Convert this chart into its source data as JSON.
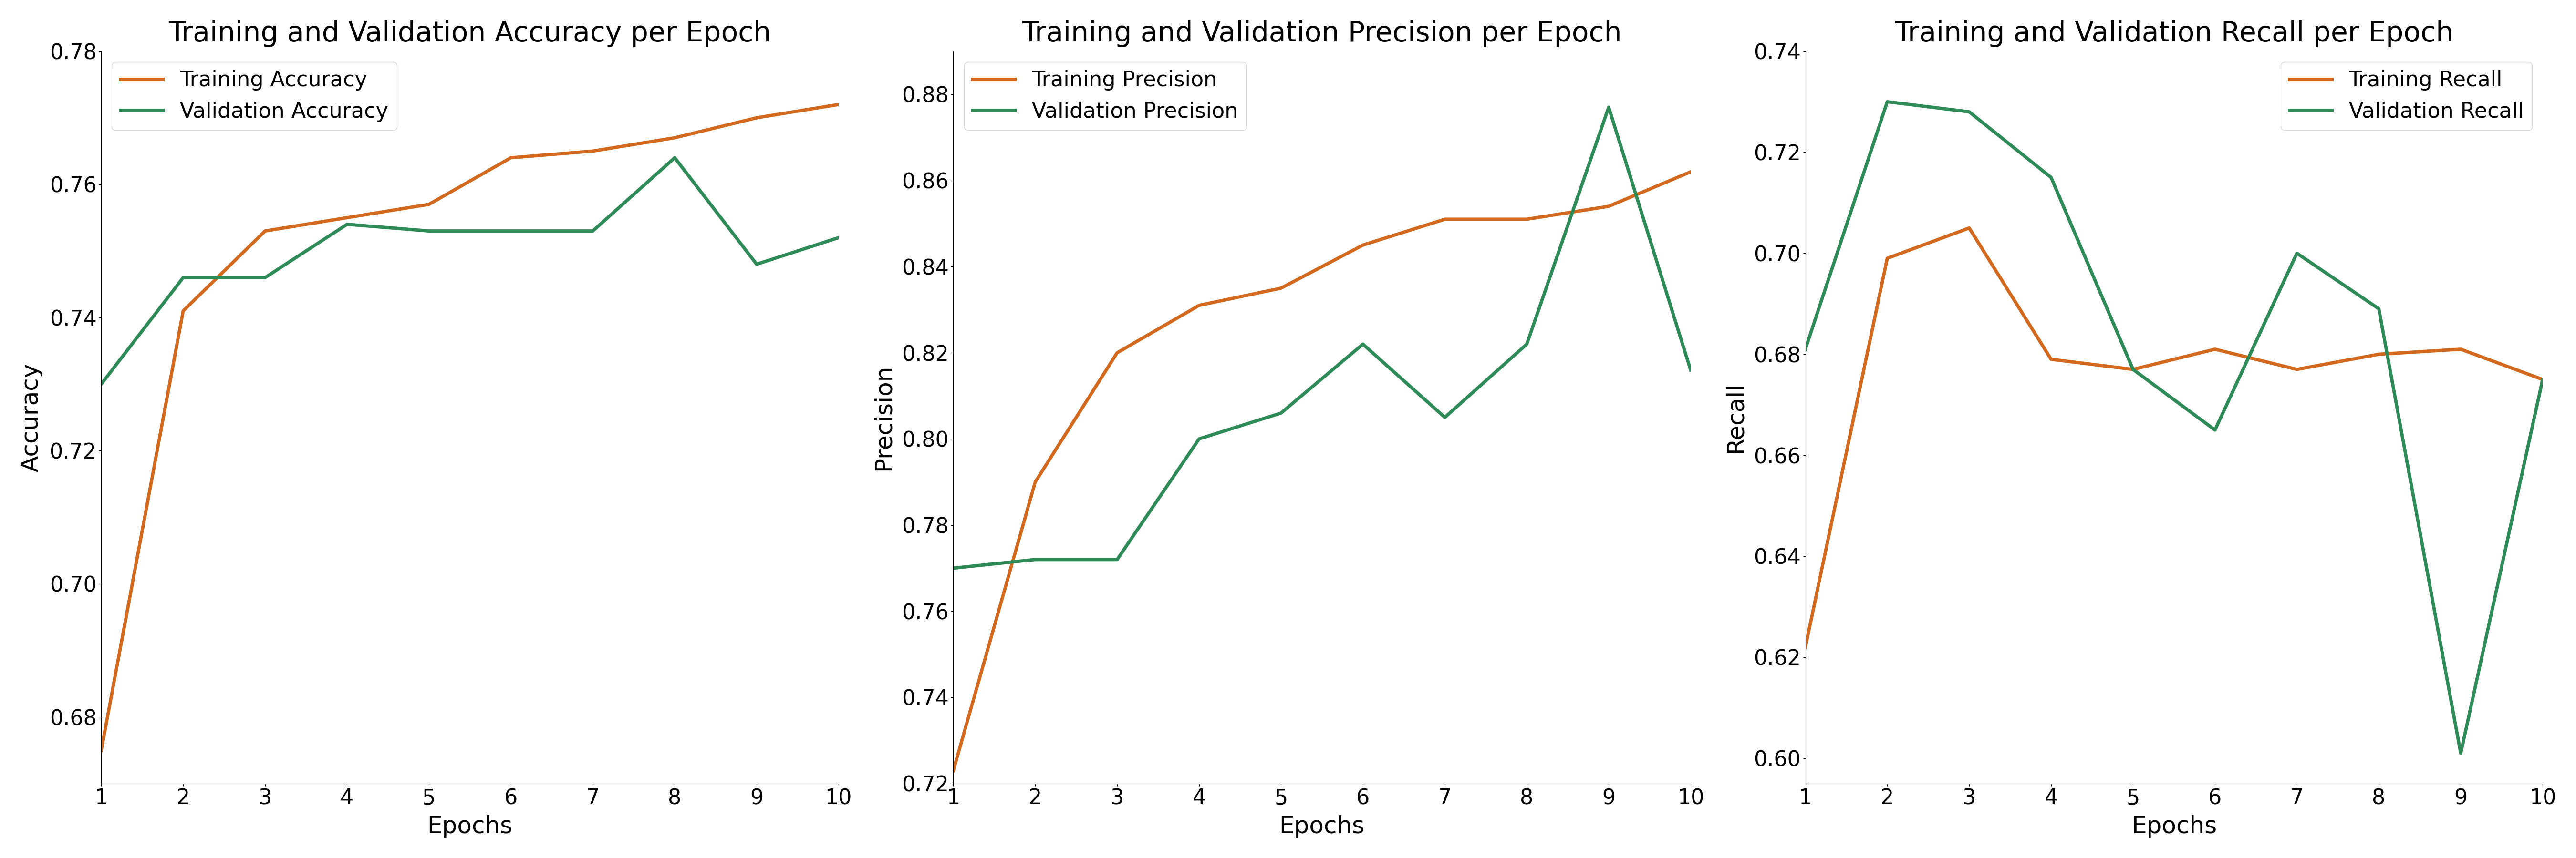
{
  "epochs": [
    1,
    2,
    3,
    4,
    5,
    6,
    7,
    8,
    9,
    10
  ],
  "train_accuracy": [
    0.675,
    0.741,
    0.753,
    0.755,
    0.757,
    0.764,
    0.765,
    0.767,
    0.77,
    0.772
  ],
  "val_accuracy": [
    0.73,
    0.746,
    0.746,
    0.754,
    0.753,
    0.753,
    0.753,
    0.764,
    0.748,
    0.752
  ],
  "train_precision": [
    0.723,
    0.79,
    0.82,
    0.831,
    0.835,
    0.845,
    0.851,
    0.851,
    0.854,
    0.862
  ],
  "val_precision": [
    0.77,
    0.772,
    0.772,
    0.8,
    0.806,
    0.822,
    0.805,
    0.822,
    0.877,
    0.816
  ],
  "train_recall": [
    0.622,
    0.699,
    0.705,
    0.679,
    0.677,
    0.681,
    0.677,
    0.68,
    0.681,
    0.675
  ],
  "val_recall": [
    0.681,
    0.73,
    0.728,
    0.715,
    0.677,
    0.665,
    0.7,
    0.689,
    0.601,
    0.675
  ],
  "train_color": "#d2691e",
  "val_color": "#2e8b57",
  "title_accuracy": "Training and Validation Accuracy per Epoch",
  "title_precision": "Training and Validation Precision per Epoch",
  "title_recall": "Training and Validation Recall per Epoch",
  "label_train_acc": "Training Accuracy",
  "label_val_acc": "Validation Accuracy",
  "label_train_prec": "Training Precision",
  "label_val_prec": "Validation Precision",
  "label_train_rec": "Training Recall",
  "label_val_rec": "Validation Recall",
  "xlabel": "Epochs",
  "ylabel_acc": "Accuracy",
  "ylabel_prec": "Precision",
  "ylabel_rec": "Recall",
  "ylim_acc": [
    0.67,
    0.78
  ],
  "ylim_prec": [
    0.72,
    0.89
  ],
  "ylim_rec": [
    0.595,
    0.74
  ],
  "title_fontsize": 42,
  "label_fontsize": 36,
  "tick_fontsize": 32,
  "legend_fontsize": 32,
  "linewidth": 5.0
}
